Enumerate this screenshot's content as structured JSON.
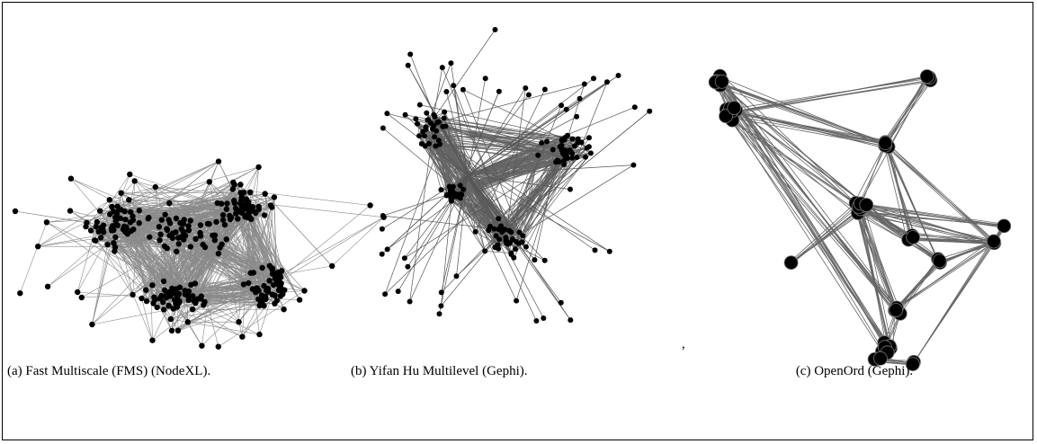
{
  "figure": {
    "panels": [
      {
        "caption": "(a) Fast Multiscale (FMS) (NodeXL)."
      },
      {
        "caption": "(b) Yifan Hu Multilevel (Gephi)."
      },
      {
        "caption": "(c) OpenOrd (Gephi)."
      }
    ],
    "separator": ","
  }
}
